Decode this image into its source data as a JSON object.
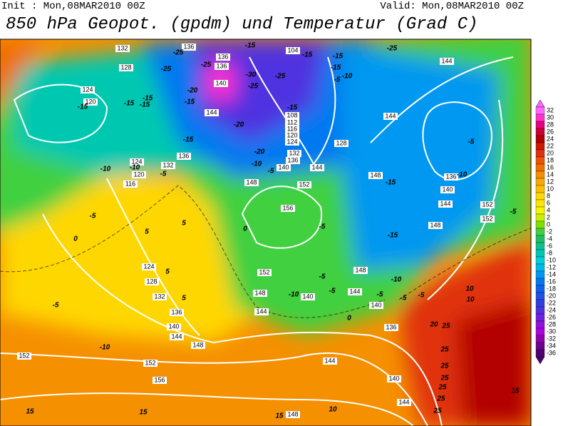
{
  "header": {
    "init": "Init : Mon,08MAR2010 00Z",
    "valid": "Valid: Mon,08MAR2010 00Z",
    "title": "850 hPa Geopot. (gpdm) und Temperatur (Grad C)"
  },
  "colorbar": {
    "ticks": [
      32,
      30,
      28,
      26,
      24,
      22,
      20,
      18,
      16,
      14,
      12,
      10,
      8,
      6,
      4,
      2,
      0,
      -2,
      -4,
      -6,
      -8,
      -10,
      -12,
      -14,
      -16,
      -18,
      -20,
      -22,
      -24,
      -26,
      -28,
      -30,
      -32,
      -34,
      -36
    ],
    "colors": [
      "#ff66ff",
      "#ff33cc",
      "#e60080",
      "#cc0033",
      "#b30000",
      "#cc1a00",
      "#e03010",
      "#ee5500",
      "#f07000",
      "#f59000",
      "#fba800",
      "#ffc000",
      "#ffd700",
      "#ffe600",
      "#f5f500",
      "#c8f000",
      "#80e000",
      "#40d040",
      "#20c060",
      "#10c090",
      "#00c8b0",
      "#00d0d8",
      "#00b8f0",
      "#0098f0",
      "#0078f0",
      "#1060f0",
      "#2050e8",
      "#3040e0",
      "#5030e0",
      "#7020e0",
      "#9010e0",
      "#b000e0",
      "#9000b0",
      "#700090",
      "#500070"
    ]
  },
  "geopotential_labels": [
    132,
    136,
    136,
    136,
    104,
    144,
    128,
    124,
    120,
    140,
    144,
    108,
    112,
    116,
    120,
    124,
    128,
    132,
    136,
    140,
    144,
    144,
    148,
    152,
    148,
    156,
    140,
    144,
    148,
    152,
    152,
    124,
    132,
    136,
    120,
    116,
    124,
    128,
    132,
    136,
    140,
    144,
    148,
    152,
    152,
    156,
    152,
    148,
    144,
    148,
    144,
    140,
    136,
    144,
    140,
    144,
    148,
    136,
    140
  ],
  "temperature_labels": [
    -25,
    -25,
    -25,
    -15,
    -15,
    -30,
    -25,
    -25,
    -15,
    -15,
    -10,
    -5,
    -25,
    -20,
    -15,
    -15,
    -15,
    -15,
    -15,
    -15,
    -20,
    -20,
    -15,
    -10,
    -10,
    -10,
    -5,
    -5,
    -15,
    -5,
    -10,
    -5,
    -5,
    0,
    -15,
    5,
    5,
    5,
    5,
    0,
    -5,
    -5,
    -10,
    -5,
    -5,
    -10,
    -10,
    -5,
    0,
    -5,
    -5,
    10,
    10,
    20,
    25,
    25,
    25,
    25,
    25,
    25,
    25,
    15,
    15,
    15,
    10,
    15
  ]
}
